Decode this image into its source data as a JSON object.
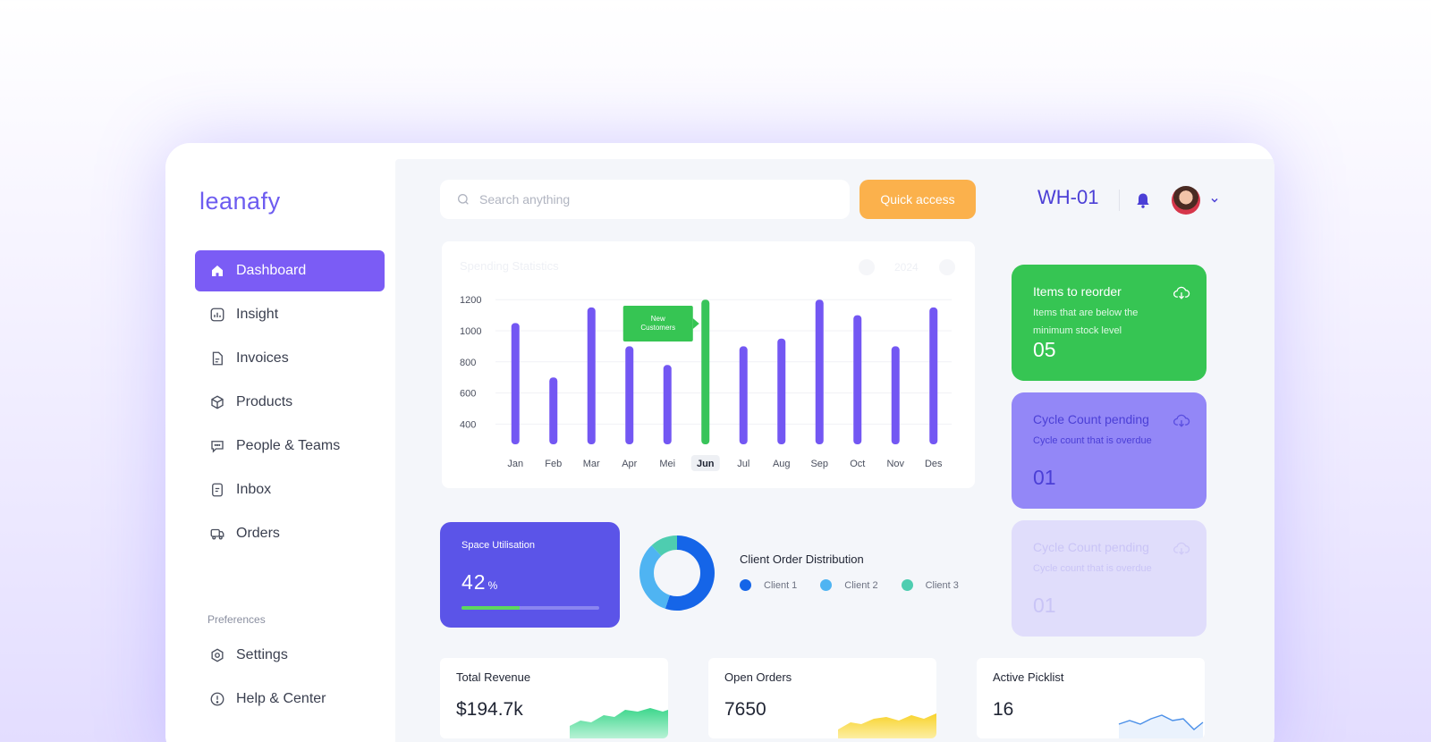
{
  "brand": {
    "logo_text": "leanafy",
    "accent": "#7b5cf5"
  },
  "sidebar": {
    "items": [
      {
        "label": "Dashboard",
        "icon": "home-icon",
        "active": true
      },
      {
        "label": "Insight",
        "icon": "chart-icon"
      },
      {
        "label": "Invoices",
        "icon": "document-icon"
      },
      {
        "label": "Products",
        "icon": "box-icon"
      },
      {
        "label": "People & Teams",
        "icon": "chat-icon"
      },
      {
        "label": "Inbox",
        "icon": "inbox-icon"
      },
      {
        "label": "Orders",
        "icon": "truck-icon"
      }
    ],
    "preferences_label": "Preferences",
    "pref_items": [
      {
        "label": "Settings",
        "icon": "settings-icon"
      },
      {
        "label": "Help & Center",
        "icon": "help-icon"
      }
    ]
  },
  "header": {
    "search_placeholder": "Search anything",
    "quick_access_label": "Quick access",
    "warehouse": "WH-01"
  },
  "spending": {
    "title": "Spending Statistics",
    "year": "2024",
    "tooltip_line1": "New",
    "tooltip_line2": "Customers"
  },
  "chart_data": {
    "type": "bar",
    "title": "Spending Statistics",
    "categories": [
      "Jan",
      "Feb",
      "Mar",
      "Apr",
      "Mei",
      "Jun",
      "Jul",
      "Aug",
      "Sep",
      "Oct",
      "Nov",
      "Des"
    ],
    "values": [
      1050,
      700,
      1150,
      900,
      780,
      1200,
      900,
      950,
      1200,
      1100,
      900,
      1150
    ],
    "highlight_index": 5,
    "highlight_color": "#38c45a",
    "bar_color": "#7357f3",
    "yticks": [
      400,
      600,
      800,
      1000,
      1200
    ],
    "ylim": [
      270,
      1230
    ],
    "grid": true
  },
  "space": {
    "title": "Space Utilisation",
    "value": "42",
    "unit": "%",
    "fraction": 0.42
  },
  "distribution": {
    "title": "Client Order Distribution",
    "clients": [
      {
        "label": "Client 1",
        "color": "#1565e8",
        "share": 0.55
      },
      {
        "label": "Client 2",
        "color": "#4fb4f2",
        "share": 0.33
      },
      {
        "label": "Client 3",
        "color": "#4ecdb0",
        "share": 0.12
      }
    ]
  },
  "stats": [
    {
      "title": "Total Revenue",
      "value": "$194.7k",
      "color": "#3dd68c"
    },
    {
      "title": "Open Orders",
      "value": "7650",
      "color": "#f8d22a"
    },
    {
      "title": "Active Picklist",
      "value": "16",
      "color": "#4a8fe8"
    }
  ],
  "side_cards": [
    {
      "title": "Items to reorder",
      "subtitle": "Items that are below the minimum stock level",
      "count": "05",
      "bg": "#36c553",
      "fg": "#ffffff"
    },
    {
      "title": "Cycle Count pending",
      "subtitle": "Cycle count that is overdue",
      "count": "01",
      "bg": "#9387f7",
      "fg": "#4b3fd6"
    },
    {
      "title": "Cycle Count pending",
      "subtitle": "Cycle count that is overdue",
      "count": "01",
      "bg": "#e0ddfb",
      "fg": "#c9c4f6"
    }
  ]
}
